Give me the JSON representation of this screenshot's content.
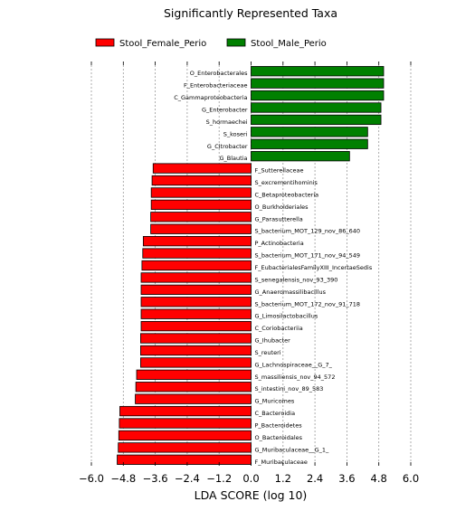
{
  "chart_data": {
    "type": "bar",
    "orientation": "horizontal",
    "title": "Significantly Represented Taxa",
    "xlabel": "LDA SCORE (log 10)",
    "ylabel": "",
    "xlim": [
      -6.0,
      6.0
    ],
    "xticks": [
      -6.0,
      -4.8,
      -3.6,
      -2.4,
      -1.2,
      0.0,
      1.2,
      2.4,
      3.6,
      4.8,
      6.0
    ],
    "xtick_labels": [
      "−6.0",
      "−4.8",
      "−3.6",
      "−2.4",
      "−1.2",
      "0.0",
      "1.2",
      "2.4",
      "3.6",
      "4.8",
      "6.0"
    ],
    "grid": "vertical dotted",
    "legend_position": "top",
    "series": [
      {
        "name": "Stool_Female_Perio",
        "color": "#ff0000"
      },
      {
        "name": "Stool_Male_Perio",
        "color": "#008000"
      }
    ],
    "bars": [
      {
        "label": "O_Enterobacterales",
        "value": 4.98,
        "group": "Stool_Male_Perio"
      },
      {
        "label": "F_Enterobacteriaceae",
        "value": 4.98,
        "group": "Stool_Male_Perio"
      },
      {
        "label": "C_Gammaproteobacteria",
        "value": 4.98,
        "group": "Stool_Male_Perio"
      },
      {
        "label": "G_Enterobacter",
        "value": 4.88,
        "group": "Stool_Male_Perio"
      },
      {
        "label": "S_hormaechei",
        "value": 4.88,
        "group": "Stool_Male_Perio"
      },
      {
        "label": "S_koseri",
        "value": 4.38,
        "group": "Stool_Male_Perio"
      },
      {
        "label": "G_Citrobacter",
        "value": 4.38,
        "group": "Stool_Male_Perio"
      },
      {
        "label": "G_Blautia",
        "value": 3.7,
        "group": "Stool_Male_Perio"
      },
      {
        "label": "F_Sutterellaceae",
        "value": -3.68,
        "group": "Stool_Female_Perio"
      },
      {
        "label": "S_excrementihominis",
        "value": -3.72,
        "group": "Stool_Female_Perio"
      },
      {
        "label": "C_Betaproteobacteria",
        "value": -3.75,
        "group": "Stool_Female_Perio"
      },
      {
        "label": "O_Burkholderiales",
        "value": -3.75,
        "group": "Stool_Female_Perio"
      },
      {
        "label": "G_Parasutterella",
        "value": -3.77,
        "group": "Stool_Female_Perio"
      },
      {
        "label": "S_bacterium_MOT_129_nov_86_640",
        "value": -3.77,
        "group": "Stool_Female_Perio"
      },
      {
        "label": "P_Actinobacteria",
        "value": -4.05,
        "group": "Stool_Female_Perio"
      },
      {
        "label": "S_bacterium_MOT_171_nov_94_549",
        "value": -4.07,
        "group": "Stool_Female_Perio"
      },
      {
        "label": "F_EubacterialesFamilyXIII_IncertaeSedis",
        "value": -4.1,
        "group": "Stool_Female_Perio"
      },
      {
        "label": "S_senegalensis_nov_93_390",
        "value": -4.13,
        "group": "Stool_Female_Perio"
      },
      {
        "label": "G_Anaeromassilibacillus",
        "value": -4.13,
        "group": "Stool_Female_Perio"
      },
      {
        "label": "S_bacterium_MOT_172_nov_91_718",
        "value": -4.13,
        "group": "Stool_Female_Perio"
      },
      {
        "label": "G_Limosilactobacillus",
        "value": -4.13,
        "group": "Stool_Female_Perio"
      },
      {
        "label": "C_Coriobacteriia",
        "value": -4.13,
        "group": "Stool_Female_Perio"
      },
      {
        "label": "G_Ihubacter",
        "value": -4.15,
        "group": "Stool_Female_Perio"
      },
      {
        "label": "S_reuteri",
        "value": -4.15,
        "group": "Stool_Female_Perio"
      },
      {
        "label": "G_Lachnospiraceae__G_7_",
        "value": -4.15,
        "group": "Stool_Female_Perio"
      },
      {
        "label": "S_massiliensis_nov_94_572",
        "value": -4.3,
        "group": "Stool_Female_Perio"
      },
      {
        "label": "S_intestini_nov_89_583",
        "value": -4.33,
        "group": "Stool_Female_Perio"
      },
      {
        "label": "G_Muricomes",
        "value": -4.35,
        "group": "Stool_Female_Perio"
      },
      {
        "label": "C_Bacteroidia",
        "value": -4.93,
        "group": "Stool_Female_Perio"
      },
      {
        "label": "P_Bacteroidetes",
        "value": -4.95,
        "group": "Stool_Female_Perio"
      },
      {
        "label": "O_Bacteroidales",
        "value": -4.97,
        "group": "Stool_Female_Perio"
      },
      {
        "label": "G_Muribaculaceae__G_1_",
        "value": -4.99,
        "group": "Stool_Female_Perio"
      },
      {
        "label": "F_Muribaculaceae",
        "value": -5.03,
        "group": "Stool_Female_Perio"
      }
    ]
  }
}
